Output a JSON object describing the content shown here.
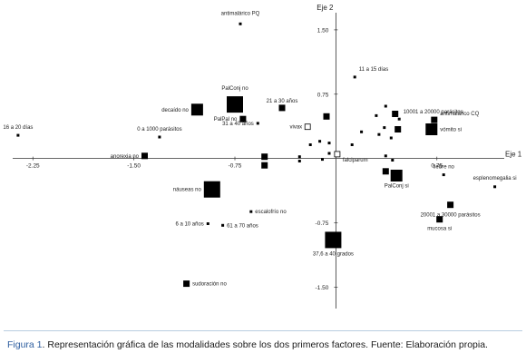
{
  "chart_data": {
    "type": "scatter",
    "title": "",
    "xlabel": "Eje 1",
    "ylabel": "Eje 2",
    "xlim": [
      -2.4,
      1.25
    ],
    "ylim": [
      -1.75,
      1.7
    ],
    "xticks": [
      {
        "v": -2.25,
        "label": "-2.25"
      },
      {
        "v": -1.5,
        "label": "-1.50"
      },
      {
        "v": -0.75,
        "label": "-0.75"
      },
      {
        "v": 0.75,
        "label": "0.75"
      }
    ],
    "yticks": [
      {
        "v": 1.5,
        "label": "1.50"
      },
      {
        "v": 0.75,
        "label": "0.75"
      },
      {
        "v": -0.75,
        "label": "-0.75"
      },
      {
        "v": -1.5,
        "label": "-1.50"
      }
    ],
    "points": [
      {
        "x": -0.71,
        "y": 1.57,
        "size": "s",
        "label": "antimalárico PQ"
      },
      {
        "x": 0.14,
        "y": 0.95,
        "size": "s",
        "label": "11 a 15 días"
      },
      {
        "x": -0.75,
        "y": 0.63,
        "size": "xl",
        "label": "PalConj no"
      },
      {
        "x": -1.03,
        "y": 0.57,
        "size": "l",
        "label": "decaído no"
      },
      {
        "x": -0.4,
        "y": 0.59,
        "size": "m",
        "label": "21 a 30 años"
      },
      {
        "x": -0.69,
        "y": 0.46,
        "size": "m",
        "label": "PalPal no"
      },
      {
        "x": -0.58,
        "y": 0.41,
        "size": "s",
        "label": "31 a 40 años"
      },
      {
        "x": -0.21,
        "y": 0.37,
        "size": "open",
        "label": "vivax"
      },
      {
        "x": -2.36,
        "y": 0.27,
        "size": "s",
        "label": "16 a 20 días"
      },
      {
        "x": -1.31,
        "y": 0.25,
        "size": "s",
        "label": "0 a 1000 parásitos"
      },
      {
        "x": 0.47,
        "y": 0.46,
        "size": "s",
        "label": "10001 a 20000 parásitos"
      },
      {
        "x": 0.73,
        "y": 0.45,
        "size": "m",
        "label": "antimalárico CQ"
      },
      {
        "x": 0.71,
        "y": 0.34,
        "size": "l",
        "label": "vómito si"
      },
      {
        "x": -1.42,
        "y": 0.03,
        "size": "m",
        "label": "anorexia no"
      },
      {
        "x": 0.01,
        "y": 0.05,
        "size": "open",
        "label": "falciparum"
      },
      {
        "x": 0.8,
        "y": -0.19,
        "size": "s",
        "label": "fiebre no"
      },
      {
        "x": 0.45,
        "y": -0.2,
        "size": "l",
        "label": "PalConj si"
      },
      {
        "x": 1.18,
        "y": -0.33,
        "size": "s",
        "label": "esplenomegalia si"
      },
      {
        "x": -0.92,
        "y": -0.36,
        "size": "xl",
        "label": "náuseas no"
      },
      {
        "x": -0.63,
        "y": -0.62,
        "size": "s",
        "label": "escalofrío no"
      },
      {
        "x": -0.95,
        "y": -0.76,
        "size": "s",
        "label": "6 a 10 años"
      },
      {
        "x": -0.84,
        "y": -0.78,
        "size": "s",
        "label": "61 a 70 años"
      },
      {
        "x": 0.85,
        "y": -0.54,
        "size": "m",
        "label": "20001 a 30000 parásitos"
      },
      {
        "x": 0.77,
        "y": -0.71,
        "size": "m",
        "label": "mucosa si"
      },
      {
        "x": -0.02,
        "y": -0.95,
        "size": "xl",
        "label": "37,6 a 40 grados"
      },
      {
        "x": -1.11,
        "y": -1.46,
        "size": "m",
        "label": "sudoración no"
      }
    ],
    "unlabeled_points": [
      {
        "x": 0.37,
        "y": 0.61,
        "size": "s"
      },
      {
        "x": 0.44,
        "y": 0.52,
        "size": "m"
      },
      {
        "x": 0.3,
        "y": 0.5,
        "size": "s"
      },
      {
        "x": -0.07,
        "y": 0.49,
        "size": "m"
      },
      {
        "x": 0.36,
        "y": 0.36,
        "size": "s"
      },
      {
        "x": 0.46,
        "y": 0.34,
        "size": "m"
      },
      {
        "x": 0.32,
        "y": 0.28,
        "size": "s"
      },
      {
        "x": 0.41,
        "y": 0.24,
        "size": "s"
      },
      {
        "x": 0.19,
        "y": 0.31,
        "size": "s"
      },
      {
        "x": 0.12,
        "y": 0.16,
        "size": "s"
      },
      {
        "x": -0.05,
        "y": 0.18,
        "size": "s"
      },
      {
        "x": -0.12,
        "y": 0.2,
        "size": "s"
      },
      {
        "x": -0.19,
        "y": 0.16,
        "size": "s"
      },
      {
        "x": -0.05,
        "y": 0.06,
        "size": "s"
      },
      {
        "x": -0.1,
        "y": -0.01,
        "size": "s"
      },
      {
        "x": -0.27,
        "y": 0.02,
        "size": "s"
      },
      {
        "x": -0.53,
        "y": 0.02,
        "size": "m"
      },
      {
        "x": -0.27,
        "y": -0.03,
        "size": "s"
      },
      {
        "x": -0.53,
        "y": -0.08,
        "size": "m"
      },
      {
        "x": 0.37,
        "y": 0.03,
        "size": "s"
      },
      {
        "x": 0.42,
        "y": -0.02,
        "size": "s"
      },
      {
        "x": 0.37,
        "y": -0.15,
        "size": "m"
      }
    ]
  },
  "caption": {
    "figure": "Figura 1",
    "text": ". Representación gráfica de las modalidades sobre los dos primeros factores. Fuente: Elaboración propia."
  }
}
